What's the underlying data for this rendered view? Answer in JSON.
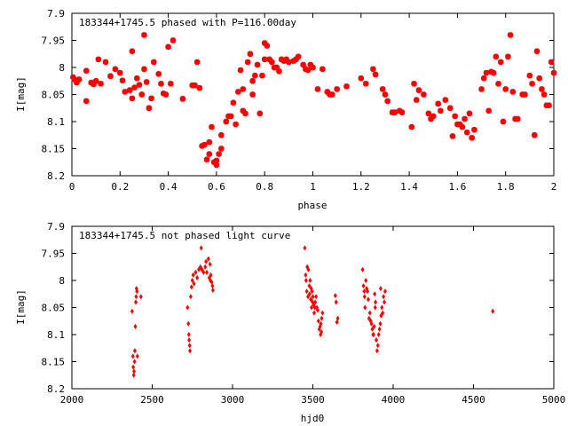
{
  "chart_data": [
    {
      "type": "scatter",
      "title": "183344+1745.5 phased with P=116.00day",
      "xlabel": "phase",
      "ylabel": "I[mag]",
      "xlim": [
        0,
        2
      ],
      "ylim": [
        7.9,
        8.2
      ],
      "y_inverted": true,
      "xticks": [
        0,
        0.2,
        0.4,
        0.6,
        0.8,
        1,
        1.2,
        1.4,
        1.6,
        1.8,
        2
      ],
      "xtick_labels": [
        "0",
        "0.2",
        "0.4",
        "0.6",
        "0.8",
        "1",
        "1.2",
        "1.4",
        "1.6",
        "1.8",
        "2"
      ],
      "yticks": [
        7.9,
        7.95,
        8,
        8.05,
        8.1,
        8.15,
        8.2
      ],
      "ytick_labels": [
        "7.9",
        "7.95",
        "8",
        "8.05",
        "8.1",
        "8.15",
        "8.2"
      ],
      "marker": "square",
      "color": "#ff0000",
      "points": [
        [
          0.005,
          8.018
        ],
        [
          0.01,
          8.022
        ],
        [
          0.02,
          8.028
        ],
        [
          0.03,
          8.022
        ],
        [
          0.06,
          8.006
        ],
        [
          0.06,
          8.062
        ],
        [
          0.08,
          8.028
        ],
        [
          0.09,
          8.031
        ],
        [
          0.1,
          8.025
        ],
        [
          0.11,
          7.985
        ],
        [
          0.12,
          8.03
        ],
        [
          0.14,
          7.99
        ],
        [
          0.16,
          8.016
        ],
        [
          0.18,
          8.003
        ],
        [
          0.2,
          8.01
        ],
        [
          0.21,
          8.024
        ],
        [
          0.22,
          8.045
        ],
        [
          0.24,
          8.042
        ],
        [
          0.25,
          8.057
        ],
        [
          0.25,
          7.97
        ],
        [
          0.26,
          8.037
        ],
        [
          0.27,
          8.02
        ],
        [
          0.28,
          8.032
        ],
        [
          0.29,
          8.05
        ],
        [
          0.3,
          7.94
        ],
        [
          0.3,
          8.003
        ],
        [
          0.31,
          8.027
        ],
        [
          0.32,
          8.075
        ],
        [
          0.33,
          8.057
        ],
        [
          0.34,
          7.99
        ],
        [
          0.36,
          8.012
        ],
        [
          0.37,
          8.03
        ],
        [
          0.38,
          8.048
        ],
        [
          0.39,
          8.05
        ],
        [
          0.4,
          7.962
        ],
        [
          0.41,
          8.03
        ],
        [
          0.42,
          7.95
        ],
        [
          0.46,
          8.058
        ],
        [
          0.5,
          8.033
        ],
        [
          0.51,
          8.033
        ],
        [
          0.52,
          7.99
        ],
        [
          0.53,
          8.038
        ],
        [
          0.54,
          8.145
        ],
        [
          0.55,
          8.143
        ],
        [
          0.56,
          8.17
        ],
        [
          0.57,
          8.16
        ],
        [
          0.57,
          8.138
        ],
        [
          0.58,
          8.11
        ],
        [
          0.59,
          8.175
        ],
        [
          0.6,
          8.18
        ],
        [
          0.6,
          8.172
        ],
        [
          0.61,
          8.16
        ],
        [
          0.62,
          8.15
        ],
        [
          0.62,
          8.125
        ],
        [
          0.64,
          8.1
        ],
        [
          0.65,
          8.09
        ],
        [
          0.66,
          8.09
        ],
        [
          0.67,
          8.065
        ],
        [
          0.68,
          8.105
        ],
        [
          0.69,
          8.045
        ],
        [
          0.7,
          8.005
        ],
        [
          0.71,
          8.04
        ],
        [
          0.71,
          8.08
        ],
        [
          0.72,
          8.085
        ],
        [
          0.73,
          7.99
        ],
        [
          0.74,
          7.975
        ],
        [
          0.75,
          8.025
        ],
        [
          0.75,
          8.05
        ],
        [
          0.76,
          8.015
        ],
        [
          0.77,
          7.995
        ],
        [
          0.78,
          8.085
        ],
        [
          0.79,
          8.015
        ],
        [
          0.8,
          7.955
        ],
        [
          0.8,
          7.985
        ],
        [
          0.81,
          7.96
        ],
        [
          0.82,
          7.985
        ],
        [
          0.83,
          7.99
        ],
        [
          0.84,
          8.0
        ],
        [
          0.85,
          8.0
        ],
        [
          0.86,
          8.007
        ],
        [
          0.87,
          7.985
        ],
        [
          0.88,
          7.988
        ],
        [
          0.89,
          7.985
        ],
        [
          0.9,
          7.99
        ],
        [
          0.92,
          7.988
        ],
        [
          0.93,
          7.985
        ],
        [
          0.94,
          7.98
        ],
        [
          0.96,
          7.995
        ],
        [
          0.97,
          8.003
        ],
        [
          0.98,
          8.005
        ],
        [
          0.99,
          7.995
        ],
        [
          1.0,
          8.0
        ],
        [
          1.02,
          8.04
        ],
        [
          1.04,
          8.003
        ],
        [
          1.06,
          8.045
        ],
        [
          1.07,
          8.05
        ],
        [
          1.08,
          8.05
        ],
        [
          1.1,
          8.04
        ],
        [
          1.14,
          8.035
        ],
        [
          1.2,
          8.02
        ],
        [
          1.22,
          8.03
        ],
        [
          1.25,
          8.003
        ],
        [
          1.26,
          8.013
        ],
        [
          1.29,
          8.04
        ],
        [
          1.3,
          8.05
        ],
        [
          1.31,
          8.062
        ],
        [
          1.33,
          8.083
        ],
        [
          1.34,
          8.083
        ],
        [
          1.36,
          8.08
        ],
        [
          1.37,
          8.083
        ],
        [
          1.41,
          8.11
        ],
        [
          1.42,
          8.03
        ],
        [
          1.43,
          8.06
        ],
        [
          1.44,
          8.042
        ],
        [
          1.46,
          8.05
        ],
        [
          1.48,
          8.085
        ],
        [
          1.49,
          8.095
        ],
        [
          1.5,
          8.09
        ],
        [
          1.52,
          8.067
        ],
        [
          1.53,
          8.08
        ],
        [
          1.55,
          8.06
        ],
        [
          1.57,
          8.075
        ],
        [
          1.58,
          8.127
        ],
        [
          1.59,
          8.09
        ],
        [
          1.6,
          8.105
        ],
        [
          1.61,
          8.105
        ],
        [
          1.62,
          8.11
        ],
        [
          1.63,
          8.095
        ],
        [
          1.64,
          8.12
        ],
        [
          1.65,
          8.085
        ],
        [
          1.66,
          8.13
        ],
        [
          1.67,
          8.115
        ],
        [
          1.7,
          8.04
        ],
        [
          1.71,
          8.02
        ],
        [
          1.72,
          8.01
        ],
        [
          1.73,
          8.08
        ],
        [
          1.74,
          8.008
        ],
        [
          1.75,
          8.01
        ],
        [
          1.76,
          7.98
        ],
        [
          1.77,
          8.03
        ],
        [
          1.78,
          7.99
        ],
        [
          1.79,
          8.1
        ],
        [
          1.8,
          8.04
        ],
        [
          1.81,
          7.98
        ],
        [
          1.82,
          7.94
        ],
        [
          1.83,
          8.045
        ],
        [
          1.84,
          8.095
        ],
        [
          1.85,
          8.095
        ],
        [
          1.87,
          8.05
        ],
        [
          1.88,
          8.05
        ],
        [
          1.9,
          8.015
        ],
        [
          1.91,
          8.03
        ],
        [
          1.92,
          8.125
        ],
        [
          1.93,
          7.97
        ],
        [
          1.94,
          8.02
        ],
        [
          1.95,
          8.04
        ],
        [
          1.96,
          8.05
        ],
        [
          1.97,
          8.07
        ],
        [
          1.98,
          8.07
        ],
        [
          1.99,
          7.99
        ],
        [
          2.0,
          8.01
        ]
      ]
    },
    {
      "type": "scatter",
      "title": "183344+1745.5 not phased light curve",
      "xlabel": "hjd0",
      "ylabel": "I[mag]",
      "xlim": [
        2000,
        5000
      ],
      "ylim": [
        7.9,
        8.2
      ],
      "y_inverted": true,
      "xticks": [
        2000,
        2500,
        3000,
        3500,
        4000,
        4500,
        5000
      ],
      "xtick_labels": [
        "2000",
        "2500",
        "3000",
        "3500",
        "4000",
        "4500",
        "5000"
      ],
      "yticks": [
        7.9,
        7.95,
        8,
        8.05,
        8.1,
        8.15,
        8.2
      ],
      "ytick_labels": [
        "7.9",
        "7.95",
        "8",
        "8.05",
        "8.1",
        "8.15",
        "8.2"
      ],
      "marker": "diamond",
      "color": "#ff0000",
      "points": [
        [
          2375,
          8.057
        ],
        [
          2380,
          8.14
        ],
        [
          2382,
          8.16
        ],
        [
          2385,
          8.175
        ],
        [
          2387,
          8.168
        ],
        [
          2390,
          8.15
        ],
        [
          2392,
          8.13
        ],
        [
          2395,
          8.085
        ],
        [
          2398,
          8.04
        ],
        [
          2400,
          8.03
        ],
        [
          2402,
          8.015
        ],
        [
          2405,
          8.02
        ],
        [
          2408,
          8.14
        ],
        [
          2430,
          8.03
        ],
        [
          2720,
          8.05
        ],
        [
          2725,
          8.08
        ],
        [
          2728,
          8.1
        ],
        [
          2730,
          8.11
        ],
        [
          2733,
          8.12
        ],
        [
          2735,
          8.13
        ],
        [
          2740,
          8.03
        ],
        [
          2745,
          8.012
        ],
        [
          2750,
          8.0
        ],
        [
          2755,
          7.99
        ],
        [
          2760,
          8.006
        ],
        [
          2770,
          7.985
        ],
        [
          2780,
          7.995
        ],
        [
          2790,
          7.98
        ],
        [
          2800,
          7.975
        ],
        [
          2805,
          7.94
        ],
        [
          2810,
          7.98
        ],
        [
          2820,
          7.985
        ],
        [
          2830,
          7.975
        ],
        [
          2835,
          7.965
        ],
        [
          2840,
          7.985
        ],
        [
          2850,
          7.96
        ],
        [
          2855,
          7.995
        ],
        [
          2860,
          7.97
        ],
        [
          2862,
          8.0
        ],
        [
          2865,
          7.99
        ],
        [
          2870,
          8.003
        ],
        [
          2875,
          8.01
        ],
        [
          2878,
          8.018
        ],
        [
          3450,
          7.94
        ],
        [
          3455,
          7.99
        ],
        [
          3458,
          8.0
        ],
        [
          3462,
          8.02
        ],
        [
          3465,
          7.975
        ],
        [
          3470,
          8.03
        ],
        [
          3472,
          7.98
        ],
        [
          3478,
          8.01
        ],
        [
          3480,
          8.025
        ],
        [
          3483,
          8.0
        ],
        [
          3487,
          8.035
        ],
        [
          3490,
          8.015
        ],
        [
          3492,
          8.05
        ],
        [
          3495,
          8.02
        ],
        [
          3498,
          8.04
        ],
        [
          3500,
          8.03
        ],
        [
          3505,
          8.045
        ],
        [
          3508,
          8.06
        ],
        [
          3512,
          8.05
        ],
        [
          3515,
          8.04
        ],
        [
          3520,
          8.03
        ],
        [
          3525,
          8.05
        ],
        [
          3530,
          8.055
        ],
        [
          3535,
          8.075
        ],
        [
          3540,
          8.09
        ],
        [
          3545,
          8.085
        ],
        [
          3548,
          8.1
        ],
        [
          3550,
          8.08
        ],
        [
          3553,
          8.095
        ],
        [
          3555,
          8.07
        ],
        [
          3560,
          8.06
        ],
        [
          3640,
          8.028
        ],
        [
          3645,
          8.04
        ],
        [
          3650,
          8.077
        ],
        [
          3655,
          8.07
        ],
        [
          3810,
          7.98
        ],
        [
          3815,
          8.01
        ],
        [
          3820,
          8.02
        ],
        [
          3822,
          8.03
        ],
        [
          3825,
          8.05
        ],
        [
          3830,
          8.0
        ],
        [
          3835,
          8.015
        ],
        [
          3840,
          8.02
        ],
        [
          3845,
          8.035
        ],
        [
          3850,
          8.07
        ],
        [
          3855,
          8.06
        ],
        [
          3860,
          8.075
        ],
        [
          3865,
          8.08
        ],
        [
          3870,
          8.09
        ],
        [
          3875,
          8.1
        ],
        [
          3878,
          8.1
        ],
        [
          3882,
          8.085
        ],
        [
          3885,
          8.025
        ],
        [
          3888,
          8.05
        ],
        [
          3890,
          8.04
        ],
        [
          3895,
          8.11
        ],
        [
          3900,
          8.13
        ],
        [
          3905,
          8.12
        ],
        [
          3910,
          8.1
        ],
        [
          3915,
          8.09
        ],
        [
          3920,
          8.08
        ],
        [
          3922,
          8.015
        ],
        [
          3925,
          8.065
        ],
        [
          3930,
          8.05
        ],
        [
          3935,
          8.06
        ],
        [
          3940,
          8.03
        ],
        [
          3945,
          8.04
        ],
        [
          3950,
          8.02
        ],
        [
          4620,
          8.057
        ]
      ]
    }
  ]
}
